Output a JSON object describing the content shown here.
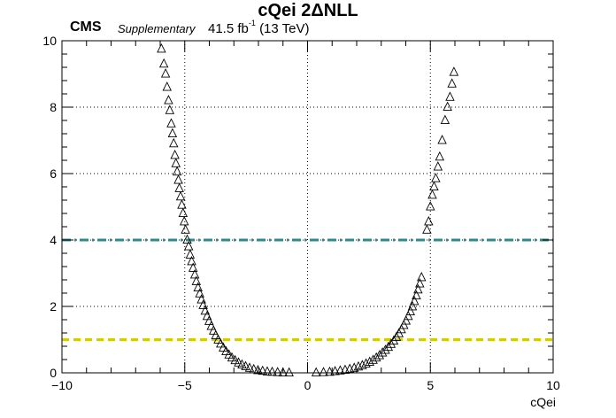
{
  "chart_data": {
    "type": "scatter",
    "title": "cQei 2ΔNLL",
    "experiment": "CMS",
    "tag": "Supplementary",
    "lumi": "41.5 fb",
    "lumi_exponent": "-1",
    "energy": "(13 TeV)",
    "xlabel": "cQei",
    "ylabel": "",
    "xlim": [
      -10,
      10
    ],
    "ylim": [
      0,
      10
    ],
    "xticks": [
      "−10",
      "−5",
      "0",
      "5",
      "10"
    ],
    "yticks": [
      "0",
      "2",
      "4",
      "6",
      "8",
      "10"
    ],
    "grid": true,
    "marker": "open-triangle",
    "reference_lines": [
      {
        "y": 4,
        "color": "#2e8b8b",
        "style": "dash-dot"
      },
      {
        "y": 1,
        "color": "#d4cc00",
        "style": "dashed"
      }
    ],
    "series": [
      {
        "x": [
          -5.95,
          -5.85,
          -5.78,
          -5.72,
          -5.66,
          -5.61,
          -5.55,
          -5.5,
          -5.45,
          -5.4,
          -5.36,
          -5.31,
          -5.26,
          -5.22,
          -5.17,
          -5.12,
          -5.07,
          -5.02,
          -4.97,
          -4.9,
          -4.84,
          -4.78,
          -4.72,
          -4.66,
          -4.59,
          -4.53,
          -4.46,
          -4.39,
          -4.32,
          -4.25,
          -4.17,
          -4.09,
          -4.01,
          -3.92,
          -3.83,
          -3.74,
          -3.64,
          -3.54,
          -3.43,
          -3.32,
          -3.2,
          -3.08,
          -2.95,
          -2.81,
          -2.67,
          -2.52,
          -2.36,
          -2.19,
          -2.02,
          -1.83,
          -1.64,
          -1.44,
          -1.22,
          -1.0,
          -0.75,
          0.35,
          0.65,
          0.9,
          1.12,
          1.33,
          1.53,
          1.72,
          1.9,
          2.07,
          2.23,
          2.38,
          2.53,
          2.67,
          2.8,
          2.93,
          3.05,
          3.17,
          3.29,
          3.4,
          3.51,
          3.62,
          3.72,
          3.82,
          3.92,
          4.01,
          4.1,
          4.19,
          4.27,
          4.35,
          4.43,
          4.5,
          4.57,
          4.64,
          4.86,
          4.93,
          5.0,
          5.08,
          5.15,
          5.22,
          5.31,
          5.38,
          5.48,
          5.6,
          5.7,
          5.8,
          5.88,
          5.96
        ],
        "y": [
          9.75,
          9.3,
          9.0,
          8.6,
          8.2,
          7.9,
          7.5,
          7.2,
          6.9,
          6.55,
          6.3,
          6.05,
          5.8,
          5.55,
          5.3,
          5.05,
          4.8,
          4.55,
          4.3,
          4.0,
          3.8,
          3.55,
          3.35,
          3.15,
          2.95,
          2.75,
          2.56,
          2.38,
          2.2,
          2.03,
          1.86,
          1.7,
          1.55,
          1.4,
          1.26,
          1.12,
          0.99,
          0.87,
          0.75,
          0.64,
          0.54,
          0.45,
          0.37,
          0.3,
          0.24,
          0.19,
          0.14,
          0.1,
          0.07,
          0.05,
          0.03,
          0.02,
          0.01,
          0.0,
          0.0,
          0.0,
          0.01,
          0.02,
          0.04,
          0.06,
          0.08,
          0.11,
          0.14,
          0.18,
          0.22,
          0.27,
          0.32,
          0.38,
          0.45,
          0.52,
          0.6,
          0.68,
          0.77,
          0.86,
          0.96,
          1.07,
          1.18,
          1.3,
          1.43,
          1.56,
          1.7,
          1.84,
          1.99,
          2.15,
          2.32,
          2.5,
          2.68,
          2.87,
          4.3,
          4.55,
          5.0,
          5.35,
          5.6,
          5.85,
          6.2,
          6.5,
          7.0,
          7.6,
          8.0,
          8.3,
          8.7,
          9.05
        ]
      }
    ]
  }
}
